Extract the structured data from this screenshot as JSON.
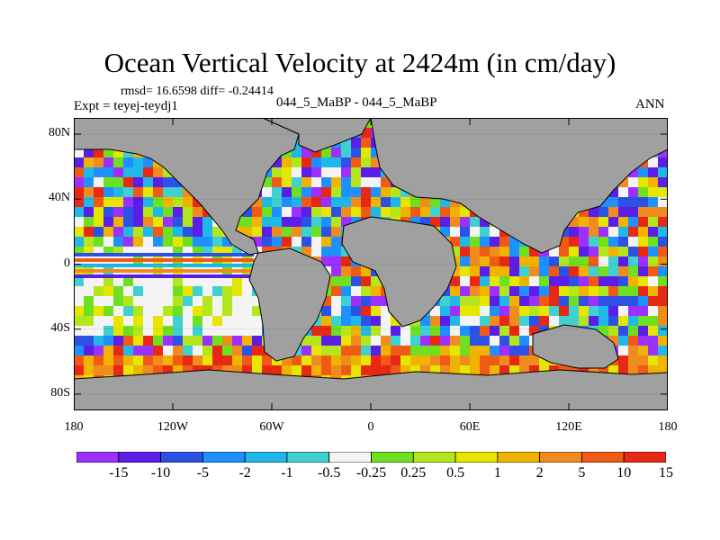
{
  "title": "Ocean Vertical Velocity at 2424m (in cm/day)",
  "stats": "rmsd= 16.6598 diff= -0.24414",
  "expt": "Expt = teyej-teydj1",
  "case": "044_5_MaBP - 044_5_MaBP",
  "season": "ANN",
  "land_color": "#a0a0a0",
  "lat_labels": [
    "80N",
    "40N",
    "0",
    "40S",
    "80S"
  ],
  "lon_labels": [
    "180",
    "120W",
    "60W",
    "0",
    "60E",
    "120E",
    "180"
  ],
  "colorbar": {
    "colors": [
      "#9b30ff",
      "#5a1ee6",
      "#2d50e6",
      "#1e90ff",
      "#20b8e8",
      "#40d0d0",
      "#f4f4f4",
      "#6ee020",
      "#b4e61e",
      "#e6e600",
      "#f0b400",
      "#f08c1e",
      "#f05a14",
      "#e62814"
    ],
    "labels": [
      "-15",
      "-10",
      "-5",
      "-2",
      "-1",
      "-0.5",
      "-0.25",
      "0.25",
      "0.5",
      "1",
      "2",
      "5",
      "10",
      "15"
    ]
  }
}
